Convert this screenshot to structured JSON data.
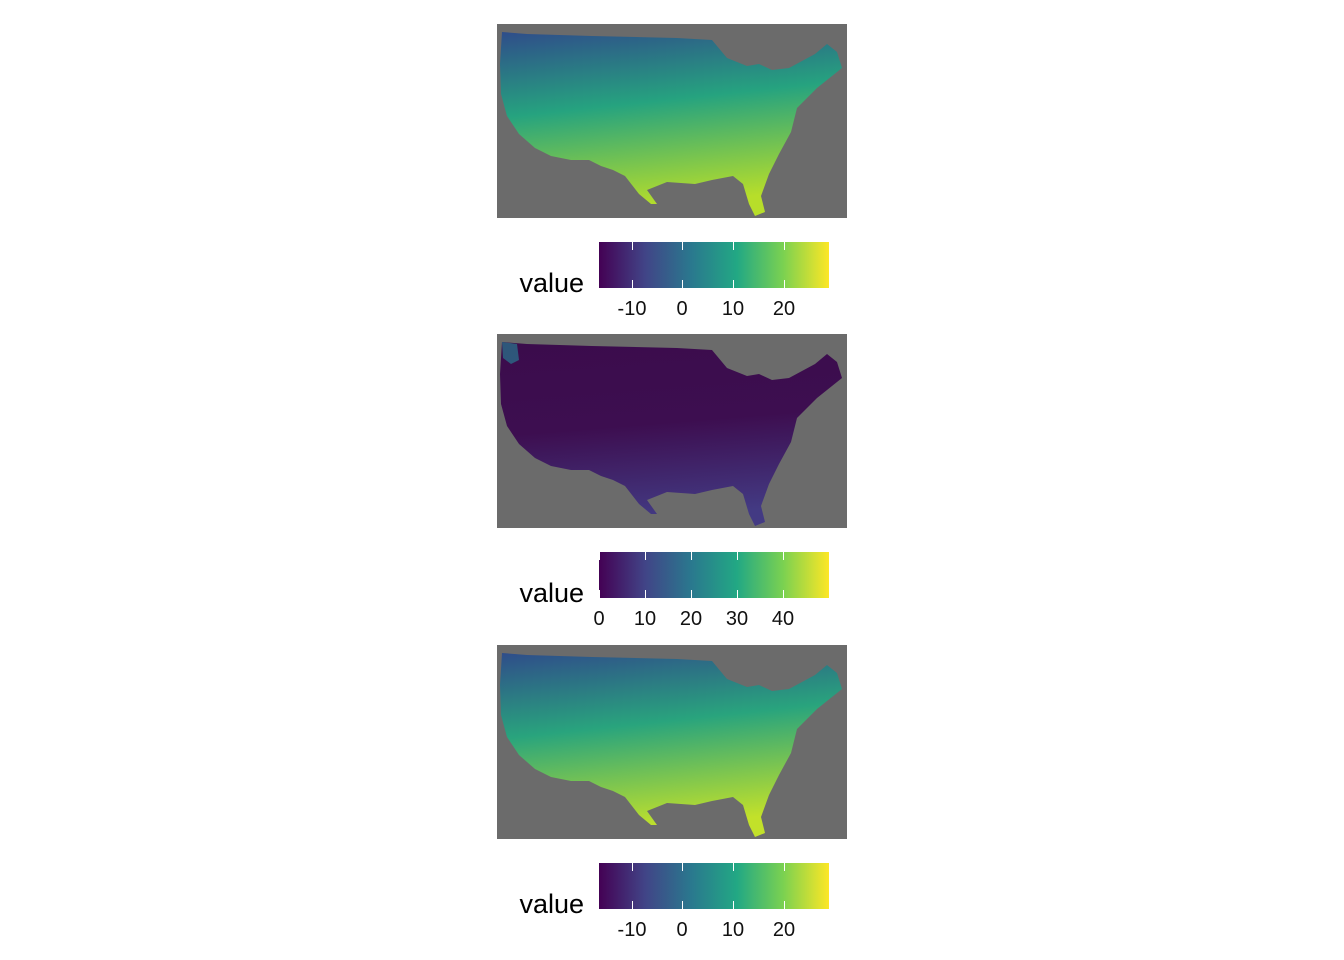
{
  "maps": [
    {
      "colors": {
        "land_low": "#2f4d8a",
        "land_mid": "#26a37f",
        "land_high": "#b7de2a",
        "background": "#6b6b6b"
      },
      "legend": {
        "title": "value",
        "min": -16.5,
        "max": 29,
        "ticks": [
          {
            "value": -10,
            "label": "-10"
          },
          {
            "value": 0,
            "label": "0"
          },
          {
            "value": 10,
            "label": "10"
          },
          {
            "value": 20,
            "label": "20"
          }
        ]
      }
    },
    {
      "colors": {
        "land_low": "#3b0c4c",
        "land_mid": "#3d0e50",
        "land_high": "#433a83",
        "background": "#6b6b6b"
      },
      "legend": {
        "title": "value",
        "min": 0,
        "max": 50,
        "ticks": [
          {
            "value": 0,
            "label": "0"
          },
          {
            "value": 10,
            "label": "10"
          },
          {
            "value": 20,
            "label": "20"
          },
          {
            "value": 30,
            "label": "30"
          },
          {
            "value": 40,
            "label": "40"
          }
        ]
      }
    },
    {
      "colors": {
        "land_low": "#2f4d8a",
        "land_mid": "#29a47d",
        "land_high": "#c2e12a",
        "background": "#6b6b6b"
      },
      "legend": {
        "title": "value",
        "min": -16.5,
        "max": 29,
        "ticks": [
          {
            "value": -10,
            "label": "-10"
          },
          {
            "value": 0,
            "label": "0"
          },
          {
            "value": 10,
            "label": "10"
          },
          {
            "value": 20,
            "label": "20"
          }
        ]
      }
    }
  ],
  "colorscale": [
    "#440154",
    "#414487",
    "#2a788e",
    "#22a884",
    "#7ad151",
    "#fde725"
  ]
}
